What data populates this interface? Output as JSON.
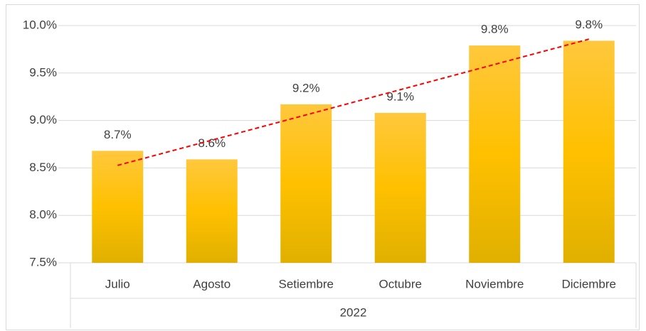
{
  "chart_data": {
    "type": "bar",
    "categories": [
      "Julio",
      "Agosto",
      "Setiembre",
      "Octubre",
      "Noviembre",
      "Diciembre"
    ],
    "group_label": "2022",
    "values": [
      8.68,
      8.59,
      9.17,
      9.08,
      9.79,
      9.84
    ],
    "value_labels": [
      "8.7%",
      "8.6%",
      "9.2%",
      "9.1%",
      "9.8%",
      "9.8%"
    ],
    "color": "#FFC000",
    "ylim": [
      7.5,
      10.0
    ],
    "yticks": [
      {
        "value": 7.5,
        "label": "7.5%"
      },
      {
        "value": 8.0,
        "label": "8.0%"
      },
      {
        "value": 8.5,
        "label": "8.5%"
      },
      {
        "value": 9.0,
        "label": "9.0%"
      },
      {
        "value": 9.5,
        "label": "9.5%"
      },
      {
        "value": 10.0,
        "label": "10.0%"
      }
    ],
    "grid": true,
    "trendline": {
      "type": "linear",
      "color": "#FF0000",
      "dashed": true
    }
  }
}
